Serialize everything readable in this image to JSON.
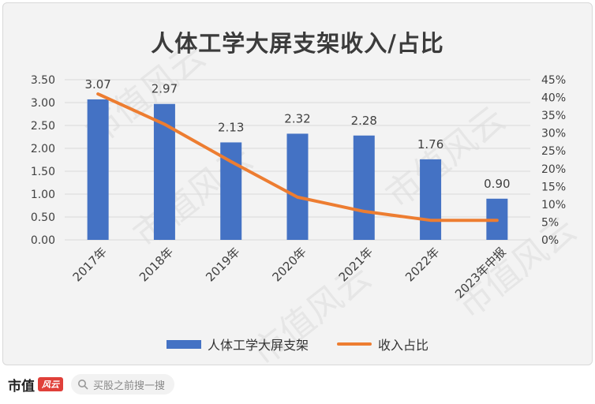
{
  "chart_data": {
    "type": "bar",
    "title": "人体工学大屏支架收入/占比",
    "categories": [
      "2017年",
      "2018年",
      "2019年",
      "2020年",
      "2021年",
      "2022年",
      "2023年中报"
    ],
    "series": [
      {
        "name": "人体工学大屏支架",
        "type": "bar",
        "axis": "left",
        "values": [
          3.07,
          2.97,
          2.13,
          2.32,
          2.28,
          1.76,
          0.9
        ],
        "color": "#4472c4"
      },
      {
        "name": "收入占比",
        "type": "line",
        "axis": "right",
        "values": [
          41,
          32.5,
          22,
          12,
          8,
          5.5,
          5.5
        ],
        "color": "#ed7d31"
      }
    ],
    "data_labels": [
      "3.07",
      "2.97",
      "2.13",
      "2.32",
      "2.28",
      "1.76",
      "0.90"
    ],
    "y_left": {
      "ticks": [
        "0.00",
        "0.50",
        "1.00",
        "1.50",
        "2.00",
        "2.50",
        "3.00",
        "3.50"
      ],
      "ylim": [
        0,
        3.5
      ]
    },
    "y_right": {
      "ticks": [
        "0%",
        "5%",
        "10%",
        "15%",
        "20%",
        "25%",
        "30%",
        "35%",
        "40%",
        "45%"
      ],
      "ylim": [
        0,
        45
      ]
    },
    "grid": true,
    "legend_position": "bottom"
  },
  "watermark": "市值风云",
  "footer": {
    "brand": "市值",
    "badge": "风云",
    "search_placeholder": "买股之前搜一搜",
    "search_icon": "search-icon"
  }
}
